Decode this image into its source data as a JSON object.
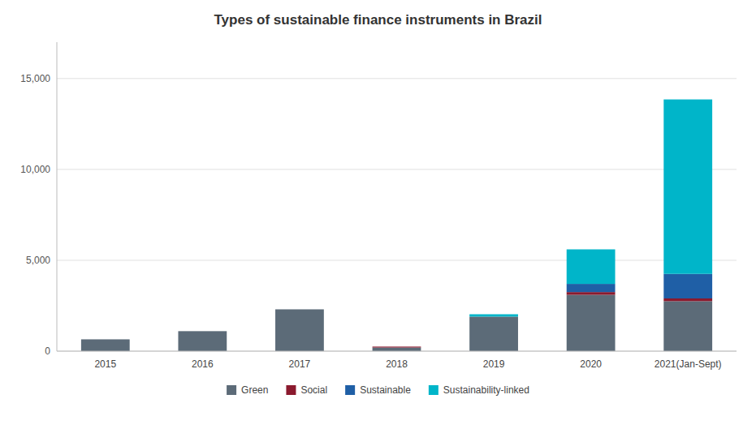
{
  "chart_data": {
    "type": "bar",
    "stacked": true,
    "title": "Types of sustainable finance instruments in Brazil",
    "categories": [
      "2015",
      "2016",
      "2017",
      "2018",
      "2019",
      "2020",
      "2021(Jan-Sept)"
    ],
    "series": [
      {
        "name": "Green",
        "color": "#5c6b78",
        "values": [
          650,
          1100,
          2300,
          200,
          1900,
          3100,
          2750
        ]
      },
      {
        "name": "Social",
        "color": "#8b1a2e",
        "values": [
          0,
          0,
          0,
          50,
          0,
          150,
          150
        ]
      },
      {
        "name": "Sustainable",
        "color": "#1f5fa6",
        "values": [
          0,
          0,
          0,
          0,
          0,
          450,
          1350
        ]
      },
      {
        "name": "Sustainability-linked",
        "color": "#00b5c9",
        "values": [
          0,
          0,
          0,
          0,
          130,
          1900,
          9600
        ]
      }
    ],
    "ylim": [
      0,
      17000
    ],
    "yticks": [
      0,
      {
        "value": 5000,
        "label": "5,000"
      },
      {
        "value": 10000,
        "label": "10,000"
      },
      {
        "value": 15000,
        "label": "15,000"
      }
    ],
    "grid": true,
    "legend": "bottom"
  }
}
